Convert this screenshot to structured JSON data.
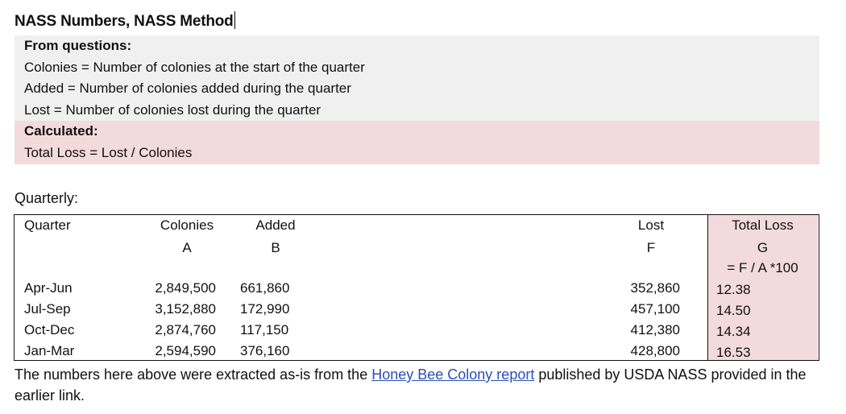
{
  "document": {
    "title": "NASS Numbers, NASS Method"
  },
  "definitions": {
    "from_questions_heading": "From questions:",
    "colonies_def": "Colonies = Number of colonies at the start of the quarter",
    "added_def": "Added = Number of colonies added during the quarter",
    "lost_def": "Lost = Number of colonies lost during the quarter",
    "calculated_heading": "Calculated:",
    "total_loss_def": "Total Loss = Lost / Colonies"
  },
  "quarterly": {
    "label": "Quarterly:",
    "headers": {
      "quarter": "Quarter",
      "colonies": "Colonies",
      "colonies_letter": "A",
      "added": "Added",
      "added_letter": "B",
      "lost": "Lost",
      "lost_letter": "F",
      "total_loss": "Total Loss",
      "total_loss_letter": "G",
      "total_loss_formula": "= F / A *100"
    },
    "rows": [
      {
        "quarter": "Apr-Jun",
        "colonies": "2,849,500",
        "added": "661,860",
        "lost": "352,860",
        "total_loss": "12.38"
      },
      {
        "quarter": "Jul-Sep",
        "colonies": "3,152,880",
        "added": "172,990",
        "lost": "457,100",
        "total_loss": "14.50"
      },
      {
        "quarter": "Oct-Dec",
        "colonies": "2,874,760",
        "added": "117,150",
        "lost": "412,380",
        "total_loss": "14.34"
      },
      {
        "quarter": "Jan-Mar",
        "colonies": "2,594,590",
        "added": "376,160",
        "lost": "428,800",
        "total_loss": "16.53"
      }
    ]
  },
  "footnote": {
    "text_before": "The numbers here above were extracted as-is from the ",
    "link_text": "Honey Bee Colony report",
    "text_after": " published by USDA NASS provided in the earlier link."
  },
  "colors": {
    "grey_band": "#f0f0f1",
    "pink_band": "#f3dadc",
    "link": "#2b4fb3"
  }
}
